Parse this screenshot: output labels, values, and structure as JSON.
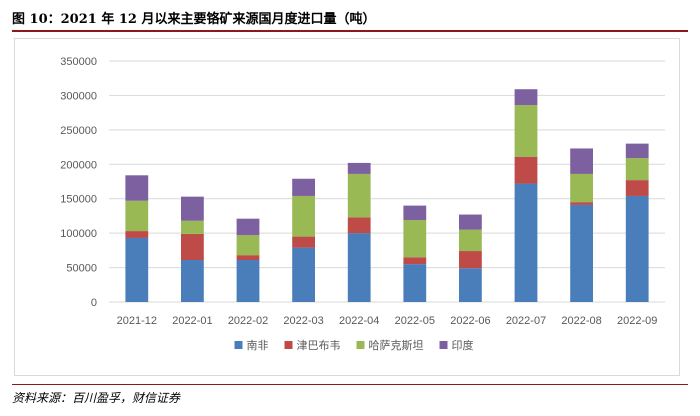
{
  "header": {
    "title": "图 10：2021 年 12 月以来主要铬矿来源国月度进口量（吨）"
  },
  "footer": {
    "source": "资料来源：百川盈孚，财信证券"
  },
  "colors": {
    "南非": "#4a7ebb",
    "津巴布韦": "#be4b48",
    "哈萨克斯坦": "#98b954",
    "印度": "#7d60a0",
    "grid": "#d9d9d9",
    "title_rule": "#8b1a1a"
  },
  "chart_data": {
    "type": "bar",
    "stacked": true,
    "title": "",
    "xlabel": "",
    "ylabel": "",
    "ylim": [
      0,
      350000
    ],
    "yticks": [
      0,
      50000,
      100000,
      150000,
      200000,
      250000,
      300000,
      350000
    ],
    "grid": true,
    "legend_position": "bottom",
    "categories": [
      "2021-12",
      "2022-01",
      "2022-02",
      "2022-03",
      "2022-04",
      "2022-05",
      "2022-06",
      "2022-07",
      "2022-08",
      "2022-09"
    ],
    "series": [
      {
        "name": "南非",
        "values": [
          93000,
          61000,
          61000,
          79000,
          100000,
          55000,
          49000,
          172000,
          141000,
          154000
        ]
      },
      {
        "name": "津巴布韦",
        "values": [
          10000,
          38000,
          7000,
          16000,
          23000,
          10000,
          25000,
          39000,
          4000,
          23000
        ]
      },
      {
        "name": "哈萨克斯坦",
        "values": [
          44000,
          19000,
          29000,
          59000,
          63000,
          54000,
          31000,
          75000,
          41000,
          32000
        ]
      },
      {
        "name": "印度",
        "values": [
          37000,
          35000,
          24000,
          25000,
          16000,
          21000,
          22000,
          23000,
          37000,
          21000
        ]
      }
    ]
  }
}
